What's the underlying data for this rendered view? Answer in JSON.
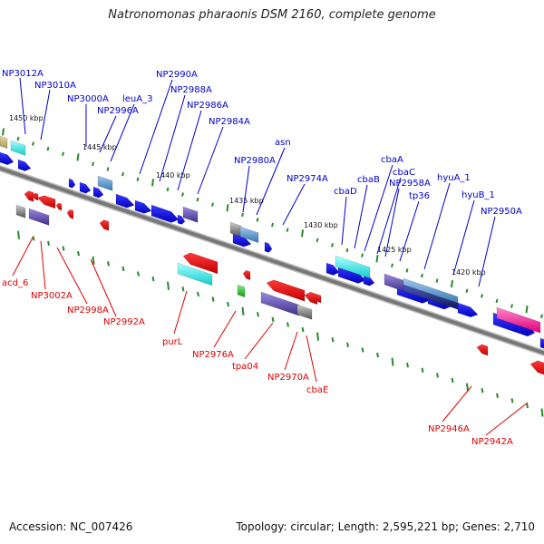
{
  "title": "Natronomonas pharaonis DSM 2160, complete genome",
  "accession_text": "Accession: NC_007426",
  "summary_text": "Topology: circular; Length: 2,595,221 bp; Genes: 2,710",
  "colors": {
    "label_forward": "#0000cc",
    "label_reverse": "#dd0000",
    "backbone": "#808080",
    "tick": "#2a8a2a",
    "gene_forward": "#0000ee",
    "gene_reverse": "#ee0000",
    "rna_cyan": "#22dddd",
    "mauve": "#6655aa",
    "magenta": "#ee2288",
    "gray": "#606060",
    "green": "#22aa22"
  },
  "kbp_marks": [
    "1450 kbp",
    "1445 kbp",
    "1440 kbp",
    "1435 kbp",
    "1430 kbp",
    "1425 kbp",
    "1420 kbp"
  ],
  "forward_labels": [
    "NP3012A",
    "NP3010A",
    "NP3000A",
    "leuA_3",
    "NP2996A",
    "NP2990A",
    "NP2988A",
    "NP2986A",
    "NP2984A",
    "NP2980A",
    "asn",
    "NP2974A",
    "cbaD",
    "cbaB",
    "cbaA",
    "cbaC",
    "NP2958A",
    "tp36",
    "hyuA_1",
    "hyuB_1",
    "NP2950A"
  ],
  "reverse_labels": [
    "acd_6",
    "NP3002A",
    "NP2998A",
    "NP2992A",
    "purL",
    "NP2976A",
    "tpa04",
    "NP2970A",
    "cbaE",
    "NP2946A",
    "NP2942A"
  ]
}
